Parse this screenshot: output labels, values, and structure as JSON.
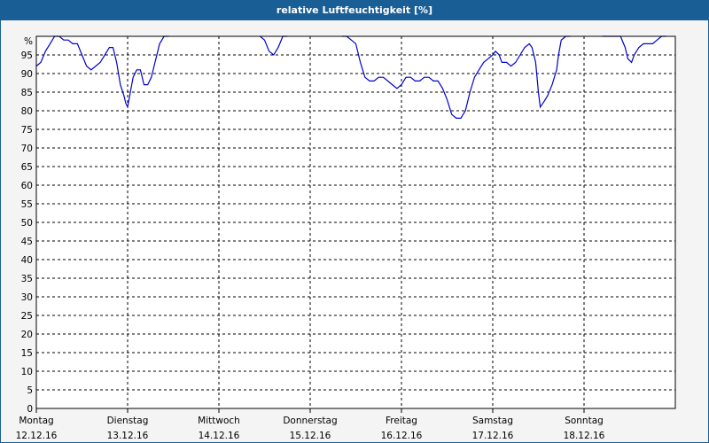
{
  "title": "relative Luftfeuchtigkeit [%]",
  "chart_data": {
    "type": "line",
    "title": "relative Luftfeuchtigkeit [%]",
    "ylabel": "%",
    "ylim": [
      0,
      100
    ],
    "yticks": [
      0,
      5,
      10,
      15,
      20,
      25,
      30,
      35,
      40,
      45,
      50,
      55,
      60,
      65,
      70,
      75,
      80,
      85,
      90,
      95
    ],
    "xlim": [
      0,
      7
    ],
    "x_ticks": [
      {
        "x": 0,
        "day": "Montag",
        "date": "12.12.16"
      },
      {
        "x": 1,
        "day": "Dienstag",
        "date": "13.12.16"
      },
      {
        "x": 2,
        "day": "Mittwoch",
        "date": "14.12.16"
      },
      {
        "x": 3,
        "day": "Donnerstag",
        "date": "15.12.16"
      },
      {
        "x": 4,
        "day": "Freitag",
        "date": "16.12.16"
      },
      {
        "x": 5,
        "day": "Samstag",
        "date": "17.12.16"
      },
      {
        "x": 6,
        "day": "Sonntag",
        "date": "18.12.16"
      }
    ],
    "grid": true,
    "line_color": "#0000cc",
    "series": [
      {
        "values": [
          [
            0.0,
            92
          ],
          [
            0.05,
            93
          ],
          [
            0.1,
            96
          ],
          [
            0.15,
            98
          ],
          [
            0.2,
            100
          ],
          [
            0.25,
            100
          ],
          [
            0.3,
            99
          ],
          [
            0.35,
            99
          ],
          [
            0.4,
            98
          ],
          [
            0.45,
            98
          ],
          [
            0.5,
            95
          ],
          [
            0.55,
            92
          ],
          [
            0.6,
            91
          ],
          [
            0.65,
            92
          ],
          [
            0.7,
            93
          ],
          [
            0.75,
            95
          ],
          [
            0.8,
            97
          ],
          [
            0.84,
            97
          ],
          [
            0.88,
            93
          ],
          [
            0.92,
            87
          ],
          [
            0.96,
            84
          ],
          [
            0.98,
            82
          ],
          [
            1.0,
            81
          ],
          [
            1.03,
            85
          ],
          [
            1.06,
            89
          ],
          [
            1.1,
            91
          ],
          [
            1.14,
            91
          ],
          [
            1.18,
            87
          ],
          [
            1.22,
            87
          ],
          [
            1.26,
            89
          ],
          [
            1.3,
            93
          ],
          [
            1.35,
            98
          ],
          [
            1.4,
            100
          ],
          [
            1.45,
            100
          ]
        ]
      },
      {
        "values": [
          [
            2.45,
            100
          ],
          [
            2.5,
            99
          ],
          [
            2.55,
            96
          ],
          [
            2.6,
            95
          ],
          [
            2.65,
            97
          ],
          [
            2.7,
            100
          ],
          [
            2.75,
            100
          ]
        ]
      },
      {
        "values": [
          [
            3.35,
            100
          ],
          [
            3.4,
            100
          ],
          [
            3.45,
            99
          ],
          [
            3.5,
            98
          ],
          [
            3.55,
            93
          ],
          [
            3.6,
            89
          ],
          [
            3.65,
            88
          ],
          [
            3.7,
            88
          ],
          [
            3.75,
            89
          ],
          [
            3.8,
            89
          ],
          [
            3.85,
            88
          ],
          [
            3.9,
            87
          ],
          [
            3.95,
            86
          ],
          [
            4.0,
            87
          ],
          [
            4.05,
            89
          ],
          [
            4.1,
            89
          ],
          [
            4.15,
            88
          ],
          [
            4.2,
            88
          ],
          [
            4.25,
            89
          ],
          [
            4.3,
            89
          ],
          [
            4.35,
            88
          ],
          [
            4.4,
            88
          ],
          [
            4.45,
            86
          ],
          [
            4.5,
            83
          ],
          [
            4.55,
            79
          ],
          [
            4.6,
            78
          ],
          [
            4.65,
            78
          ],
          [
            4.7,
            80
          ],
          [
            4.75,
            85
          ],
          [
            4.8,
            89
          ],
          [
            4.85,
            91
          ],
          [
            4.9,
            93
          ],
          [
            4.95,
            94
          ],
          [
            5.0,
            95
          ],
          [
            5.03,
            96
          ],
          [
            5.07,
            95
          ],
          [
            5.1,
            93
          ],
          [
            5.15,
            93
          ],
          [
            5.2,
            92
          ],
          [
            5.25,
            93
          ],
          [
            5.3,
            95
          ],
          [
            5.35,
            97
          ],
          [
            5.4,
            98
          ],
          [
            5.43,
            97
          ],
          [
            5.47,
            93
          ],
          [
            5.5,
            85
          ],
          [
            5.52,
            81
          ],
          [
            5.55,
            82
          ],
          [
            5.6,
            84
          ],
          [
            5.65,
            87
          ],
          [
            5.7,
            91
          ],
          [
            5.72,
            95
          ],
          [
            5.75,
            99
          ],
          [
            5.8,
            100
          ],
          [
            5.85,
            100
          ]
        ]
      },
      {
        "values": [
          [
            6.2,
            100
          ],
          [
            6.25,
            100
          ],
          [
            6.3,
            100
          ],
          [
            6.35,
            100
          ],
          [
            6.4,
            100
          ],
          [
            6.45,
            97
          ],
          [
            6.48,
            94
          ],
          [
            6.52,
            93
          ],
          [
            6.55,
            95
          ],
          [
            6.6,
            97
          ],
          [
            6.65,
            98
          ],
          [
            6.7,
            98
          ],
          [
            6.75,
            98
          ],
          [
            6.8,
            99
          ],
          [
            6.85,
            100
          ],
          [
            6.9,
            100
          ]
        ]
      }
    ]
  }
}
